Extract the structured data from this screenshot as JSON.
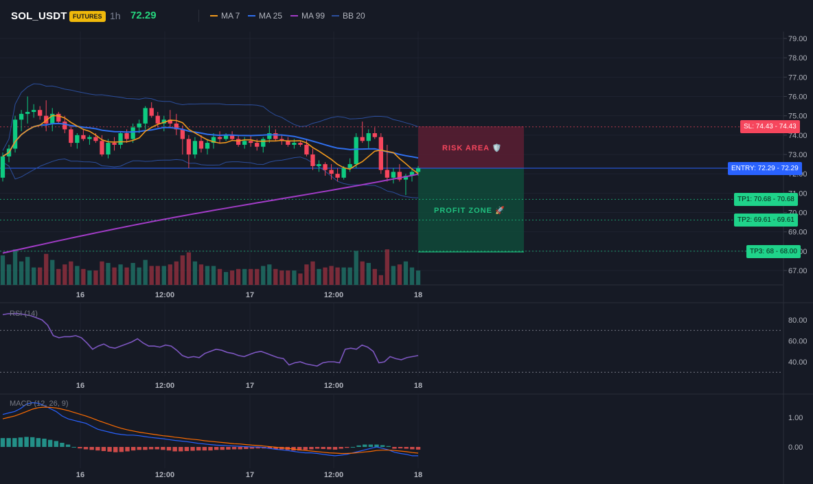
{
  "header": {
    "symbol": "SOL_USDT",
    "badge": "FUTURES",
    "timeframe": "1h",
    "price": "72.29",
    "legend": [
      {
        "label": "MA 7",
        "color": "#f39a1d"
      },
      {
        "label": "MA 25",
        "color": "#2f6fee"
      },
      {
        "label": "MA 99",
        "color": "#a33cc8"
      },
      {
        "label": "BB 20",
        "color": "#2c4f9e"
      }
    ]
  },
  "zones": {
    "risk_label": "RISK AREA 🛡️",
    "profit_label": "PROFIT ZONE 🚀"
  },
  "tags": {
    "sl": "SL: 74.43 - 74.43",
    "entry": "ENTRY: 72.29 - 72.29",
    "tp1": "TP1: 70.68 - 70.68",
    "tp2": "TP2: 69.61 - 69.61",
    "tp3": "TP3: 68 - 68.00"
  },
  "colors": {
    "up": "#26a69a",
    "down": "#ef5350",
    "green_candle": "#0ecb81",
    "red_candle": "#f6465d"
  },
  "chart_data": [
    {
      "type": "candlestick",
      "title": "SOL_USDT 1h",
      "price_axis_ticks": [
        "79.00",
        "78.00",
        "77.00",
        "76.00",
        "75.00",
        "74.00",
        "73.00",
        "72.00",
        "71.00",
        "70.00",
        "69.00",
        "68.00",
        "67.00"
      ],
      "ylim": [
        66.6,
        79.3
      ],
      "time_ticks": [
        "16",
        "12:00",
        "17",
        "12:00",
        "18"
      ],
      "levels": {
        "sl": 74.43,
        "entry": 72.29,
        "tp1": 70.68,
        "tp2": 69.61,
        "tp3": 68.0
      },
      "candles": [
        [
          71.8,
          73.1,
          71.6,
          72.9
        ],
        [
          72.9,
          73.5,
          72.6,
          73.3
        ],
        [
          73.3,
          75.0,
          73.1,
          74.8
        ],
        [
          74.8,
          75.3,
          74.2,
          75.1
        ],
        [
          75.1,
          76.0,
          74.6,
          75.2
        ],
        [
          75.2,
          75.6,
          74.9,
          75.3
        ],
        [
          75.3,
          75.5,
          74.8,
          75.0
        ],
        [
          75.0,
          75.8,
          74.2,
          74.6
        ],
        [
          74.6,
          75.4,
          74.2,
          75.1
        ],
        [
          75.1,
          75.2,
          74.6,
          74.7
        ],
        [
          74.7,
          75.0,
          74.1,
          74.3
        ],
        [
          74.3,
          74.5,
          73.4,
          73.6
        ],
        [
          73.6,
          74.1,
          73.3,
          74.0
        ],
        [
          74.0,
          74.3,
          73.7,
          73.8
        ],
        [
          73.8,
          74.0,
          73.5,
          73.9
        ],
        [
          73.9,
          74.1,
          73.6,
          73.7
        ],
        [
          73.7,
          74.0,
          72.9,
          73.0
        ],
        [
          73.0,
          73.8,
          72.8,
          73.6
        ],
        [
          73.6,
          73.9,
          73.2,
          73.5
        ],
        [
          73.5,
          74.2,
          73.3,
          74.1
        ],
        [
          74.1,
          74.3,
          73.6,
          73.8
        ],
        [
          73.8,
          74.6,
          73.6,
          74.4
        ],
        [
          74.4,
          74.8,
          74.1,
          74.6
        ],
        [
          74.6,
          75.5,
          74.3,
          75.4
        ],
        [
          75.4,
          75.7,
          74.9,
          75.0
        ],
        [
          75.0,
          75.2,
          74.4,
          74.6
        ],
        [
          74.6,
          75.0,
          74.2,
          74.8
        ],
        [
          74.8,
          75.3,
          74.4,
          74.6
        ],
        [
          74.6,
          75.1,
          74.0,
          74.3
        ],
        [
          74.3,
          74.5,
          73.0,
          73.8
        ],
        [
          73.8,
          74.0,
          72.3,
          73.0
        ],
        [
          73.0,
          73.9,
          72.8,
          73.7
        ],
        [
          73.7,
          74.0,
          73.1,
          73.3
        ],
        [
          73.3,
          73.8,
          73.0,
          73.6
        ],
        [
          73.6,
          74.1,
          73.3,
          73.9
        ],
        [
          73.9,
          74.2,
          73.6,
          73.8
        ],
        [
          73.8,
          74.1,
          73.7,
          74.0
        ],
        [
          74.0,
          74.2,
          73.7,
          73.8
        ],
        [
          73.8,
          74.0,
          73.4,
          73.5
        ],
        [
          73.5,
          73.9,
          73.3,
          73.7
        ],
        [
          73.7,
          74.0,
          73.4,
          73.6
        ],
        [
          73.6,
          73.8,
          73.2,
          73.4
        ],
        [
          73.4,
          73.9,
          73.1,
          73.8
        ],
        [
          73.8,
          74.5,
          73.6,
          74.1
        ],
        [
          74.1,
          74.3,
          73.7,
          73.8
        ],
        [
          73.8,
          74.0,
          73.5,
          73.7
        ],
        [
          73.7,
          73.9,
          73.4,
          73.5
        ],
        [
          73.5,
          73.8,
          73.3,
          73.6
        ],
        [
          73.6,
          73.7,
          73.4,
          73.5
        ],
        [
          73.5,
          73.8,
          72.9,
          73.0
        ],
        [
          73.0,
          73.3,
          72.2,
          72.4
        ],
        [
          72.4,
          72.7,
          72.1,
          72.5
        ],
        [
          72.5,
          72.6,
          71.9,
          72.2
        ],
        [
          72.2,
          72.5,
          71.7,
          72.0
        ],
        [
          72.0,
          72.3,
          71.6,
          71.8
        ],
        [
          71.8,
          72.4,
          71.7,
          72.3
        ],
        [
          72.3,
          72.8,
          72.1,
          72.5
        ],
        [
          72.5,
          74.1,
          72.3,
          73.9
        ],
        [
          73.9,
          74.7,
          73.6,
          73.7
        ],
        [
          73.7,
          74.3,
          73.3,
          74.1
        ],
        [
          74.1,
          74.4,
          73.8,
          73.9
        ],
        [
          73.9,
          74.1,
          72.0,
          72.2
        ],
        [
          72.2,
          73.5,
          71.6,
          71.8
        ],
        [
          71.8,
          72.3,
          71.5,
          72.1
        ],
        [
          72.1,
          72.5,
          71.6,
          71.7
        ],
        [
          71.7,
          72.0,
          70.9,
          71.9
        ],
        [
          71.9,
          72.3,
          71.6,
          72.1
        ],
        [
          72.1,
          72.4,
          71.9,
          72.29
        ]
      ],
      "volume_tick": "(relative)"
    },
    {
      "type": "line",
      "title": "RSI (14)",
      "ylim": [
        30,
        90
      ],
      "y_ticks": [
        "80.00",
        "60.00",
        "40.00"
      ],
      "bands": [
        70,
        30
      ],
      "values": [
        85,
        86,
        86,
        86,
        85,
        84,
        82,
        80,
        75,
        65,
        63,
        64,
        64,
        65,
        63,
        58,
        52,
        55,
        57,
        54,
        53,
        55,
        57,
        59,
        62,
        58,
        55,
        55,
        54,
        56,
        55,
        51,
        46,
        44,
        45,
        44,
        48,
        50,
        52,
        51,
        49,
        48,
        46,
        45,
        47,
        49,
        50,
        48,
        46,
        44,
        43,
        37,
        39,
        40,
        38,
        37,
        36,
        39,
        40,
        40,
        39,
        52,
        53,
        52,
        56,
        54,
        50,
        39,
        40,
        45,
        43,
        42,
        44,
        45,
        46
      ]
    },
    {
      "type": "line",
      "title": "MACD (12, 26, 9)",
      "ylim": [
        -0.6,
        1.9
      ],
      "y_ticks": [
        "1.00",
        "0.00"
      ],
      "macd": [
        1.1,
        1.15,
        1.2,
        1.3,
        1.45,
        1.5,
        1.48,
        1.4,
        1.3,
        1.2,
        1.05,
        0.95,
        0.9,
        0.85,
        0.8,
        0.7,
        0.6,
        0.55,
        0.5,
        0.45,
        0.42,
        0.4,
        0.4,
        0.38,
        0.35,
        0.32,
        0.3,
        0.28,
        0.25,
        0.22,
        0.2,
        0.18,
        0.15,
        0.12,
        0.1,
        0.08,
        0.06,
        0.05,
        0.04,
        0.03,
        0.02,
        0.01,
        0.0,
        0.0,
        -0.02,
        -0.05,
        -0.08,
        -0.1,
        -0.12,
        -0.15,
        -0.18,
        -0.2,
        -0.2,
        -0.22,
        -0.25,
        -0.28,
        -0.3,
        -0.28,
        -0.25,
        -0.2,
        -0.15,
        -0.1,
        -0.05,
        0.0,
        -0.05,
        -0.1,
        -0.18,
        -0.22,
        -0.25,
        -0.3,
        -0.3
      ],
      "signal": [
        0.95,
        1.0,
        1.05,
        1.12,
        1.2,
        1.28,
        1.33,
        1.35,
        1.34,
        1.32,
        1.28,
        1.23,
        1.17,
        1.11,
        1.05,
        0.98,
        0.9,
        0.83,
        0.76,
        0.69,
        0.63,
        0.58,
        0.54,
        0.5,
        0.47,
        0.44,
        0.41,
        0.38,
        0.36,
        0.33,
        0.31,
        0.28,
        0.26,
        0.24,
        0.21,
        0.19,
        0.17,
        0.15,
        0.13,
        0.11,
        0.1,
        0.08,
        0.06,
        0.05,
        0.03,
        0.01,
        -0.01,
        -0.03,
        -0.05,
        -0.07,
        -0.1,
        -0.12,
        -0.14,
        -0.16,
        -0.18,
        -0.2,
        -0.21,
        -0.22,
        -0.22,
        -0.21,
        -0.19,
        -0.17,
        -0.15,
        -0.12,
        -0.11,
        -0.11,
        -0.12,
        -0.14,
        -0.16,
        -0.19,
        -0.21
      ],
      "hist": [
        0.3,
        0.3,
        0.3,
        0.32,
        0.34,
        0.33,
        0.3,
        0.28,
        0.24,
        0.2,
        0.14,
        0.08,
        0.0,
        -0.05,
        -0.08,
        -0.1,
        -0.12,
        -0.14,
        -0.16,
        -0.18,
        -0.17,
        -0.15,
        -0.12,
        -0.1,
        -0.1,
        -0.08,
        -0.08,
        -0.1,
        -0.12,
        -0.15,
        -0.15,
        -0.14,
        -0.13,
        -0.12,
        -0.12,
        -0.12,
        -0.1,
        -0.1,
        -0.09,
        -0.08,
        -0.08,
        -0.07,
        -0.06,
        -0.05,
        -0.05,
        -0.06,
        -0.07,
        -0.08,
        -0.1,
        -0.12,
        -0.12,
        -0.1,
        -0.08,
        -0.06,
        -0.07,
        -0.08,
        -0.09,
        -0.06,
        -0.03,
        0.0,
        0.05,
        0.08,
        0.08,
        0.08,
        0.06,
        0.03,
        -0.06,
        -0.05,
        -0.06,
        -0.08,
        -0.09
      ]
    }
  ]
}
